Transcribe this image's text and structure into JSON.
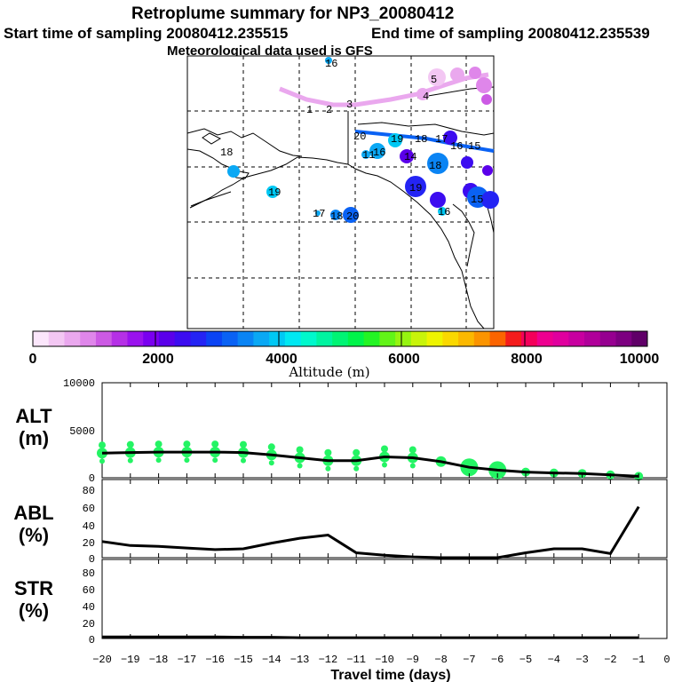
{
  "header": {
    "title": "Retroplume summary for NP3_20080412",
    "start": "Start time of sampling 20080412.235515",
    "end": "End time of sampling 20080412.235539",
    "met": "Meteorological data used is GFS"
  },
  "colorbar": {
    "labels": [
      "0",
      "2000",
      "4000",
      "6000",
      "8000",
      "10000"
    ],
    "title": "Altitude (m)",
    "colors": [
      "#fbe6fb",
      "#f3c7f3",
      "#eaa8ee",
      "#df86ea",
      "#cc5ae4",
      "#b530e6",
      "#9a12ee",
      "#7a00f0",
      "#5a00ea",
      "#3c0cf0",
      "#2424f4",
      "#0b44f4",
      "#0a62f4",
      "#0a84f4",
      "#0aa8f4",
      "#00c8f4",
      "#00e8f2",
      "#00f8cc",
      "#00f4a0",
      "#00f474",
      "#00f44a",
      "#24f424",
      "#62f418",
      "#96f410",
      "#c8f40a",
      "#eef400",
      "#fad800",
      "#fbb800",
      "#fb9400",
      "#fb6400",
      "#f41c1c",
      "#f4005a",
      "#ee0090",
      "#e0009e",
      "#c800a0",
      "#b0009a",
      "#960090",
      "#7c0080",
      "#600068"
    ]
  },
  "map_labels": [
    {
      "t": "16",
      "c": "#1a3cd8"
    },
    {
      "t": "1",
      "c": "#000"
    },
    {
      "t": "2",
      "c": "#000"
    },
    {
      "t": "3",
      "c": "#000"
    },
    {
      "t": "5",
      "c": "#000"
    },
    {
      "t": "4",
      "c": "#000"
    },
    {
      "t": "20",
      "c": "#000"
    },
    {
      "t": "19",
      "c": "#000"
    },
    {
      "t": "18",
      "c": "#000"
    },
    {
      "t": "17",
      "c": "#000"
    },
    {
      "t": "16",
      "c": "#000"
    },
    {
      "t": "15",
      "c": "#000"
    },
    {
      "t": "14",
      "c": "#000"
    },
    {
      "t": "18",
      "c": "#000"
    },
    {
      "t": "19",
      "c": "#000"
    },
    {
      "t": "20",
      "c": "#000"
    },
    {
      "t": "19",
      "c": "#000"
    },
    {
      "t": "18",
      "c": "#000"
    },
    {
      "t": "17",
      "c": "#000"
    },
    {
      "t": "16",
      "c": "#000"
    },
    {
      "t": "15",
      "c": "#000"
    },
    {
      "t": "11",
      "c": "#000"
    },
    {
      "t": "18",
      "c": "#000"
    },
    {
      "t": "16",
      "c": "#000"
    }
  ],
  "panels": {
    "alt": {
      "label_top": "ALT",
      "label_bottom": "(m)",
      "yticks": [
        "10000",
        "5000",
        "0"
      ]
    },
    "abl": {
      "label_top": "ABL",
      "label_bottom": "(%)",
      "yticks": [
        "80",
        "60",
        "40",
        "20",
        "0"
      ]
    },
    "str": {
      "label_top": "STR",
      "label_bottom": "(%)",
      "yticks": [
        "80",
        "60",
        "40",
        "20",
        "0"
      ]
    }
  },
  "xaxis": {
    "label": "Travel time (days)",
    "ticks": [
      "−20",
      "−19",
      "−18",
      "−17",
      "−16",
      "−15",
      "−14",
      "−13",
      "−12",
      "−11",
      "−10",
      "−9",
      "−8",
      "−7",
      "−6",
      "−5",
      "−4",
      "−3",
      "−2",
      "−1",
      "0"
    ]
  },
  "chart_data": {
    "type": "line",
    "title": "Retroplume summary for NP3_20080412",
    "x": [
      -20,
      -19,
      -18,
      -17,
      -16,
      -15,
      -14,
      -13,
      -12,
      -11,
      -10,
      -9,
      -8,
      -7,
      -6,
      -5,
      -4,
      -3,
      -2,
      -1
    ],
    "series": [
      {
        "name": "ALT (m)",
        "ylim": [
          0,
          10000
        ],
        "values": [
          2600,
          2650,
          2700,
          2700,
          2700,
          2650,
          2400,
          2100,
          1800,
          1800,
          2200,
          2100,
          1700,
          1100,
          800,
          600,
          500,
          450,
          300,
          150
        ]
      },
      {
        "name": "ABL (%)",
        "ylim": [
          0,
          90
        ],
        "values": [
          20,
          15,
          14,
          12,
          10,
          11,
          18,
          24,
          28,
          6,
          3,
          1,
          0,
          0,
          0,
          6,
          11,
          11,
          5,
          63
        ]
      },
      {
        "name": "STR (%)",
        "ylim": [
          0,
          90
        ],
        "values": [
          2,
          2,
          2,
          2,
          2,
          1.5,
          1.5,
          1,
          1,
          1,
          1,
          1,
          1,
          1,
          1,
          1,
          1,
          1,
          1,
          1
        ]
      }
    ],
    "xlabel": "Travel time (days)",
    "xlim": [
      -20,
      0
    ]
  }
}
